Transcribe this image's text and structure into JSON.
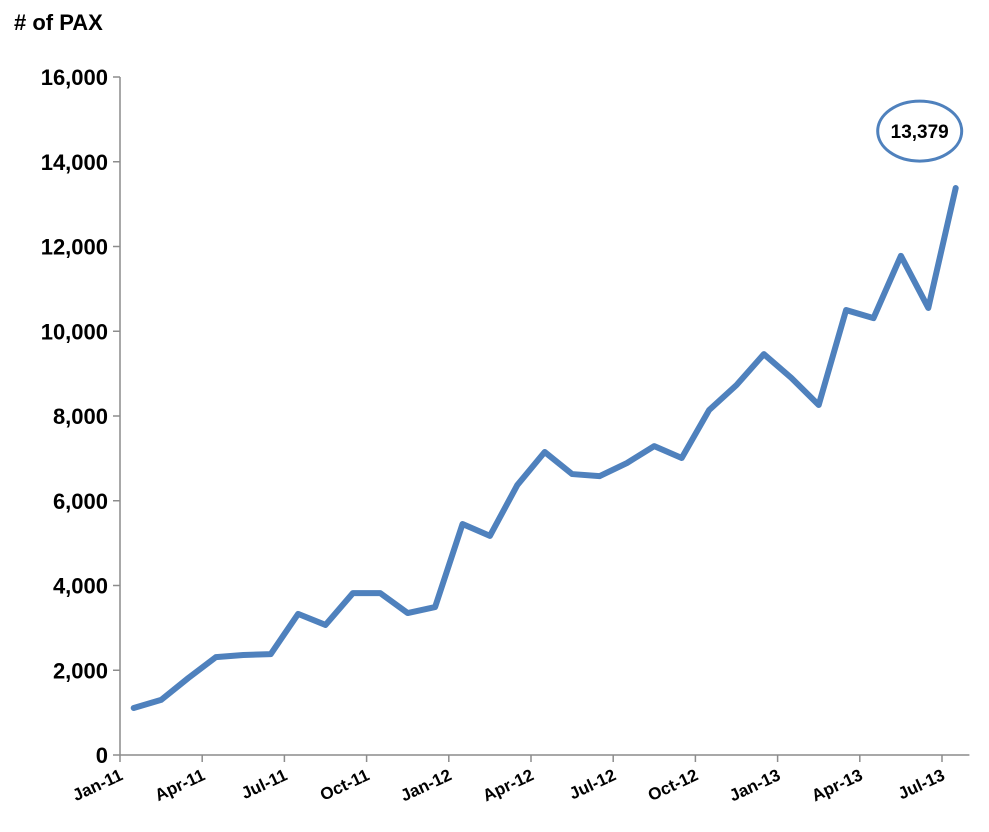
{
  "chart_data": {
    "type": "line",
    "ylabel": "# of PAX",
    "categories": [
      "Jan-11",
      null,
      null,
      "Apr-11",
      null,
      null,
      "Jul-11",
      null,
      null,
      "Oct-11",
      null,
      null,
      "Jan-12",
      null,
      null,
      "Apr-12",
      null,
      null,
      "Jul-12",
      null,
      null,
      "Oct-12",
      null,
      null,
      "Jan-13",
      null,
      null,
      "Apr-13",
      null,
      null,
      "Jul-13"
    ],
    "series": [
      {
        "name": "PAX",
        "color": "#4f81bd",
        "values": [
          1110,
          1300,
          1820,
          2310,
          2360,
          2380,
          3330,
          3070,
          3820,
          3820,
          3350,
          3490,
          5450,
          5170,
          6370,
          7150,
          6630,
          6580,
          6890,
          7290,
          7010,
          8140,
          8730,
          9460,
          8900,
          8260,
          10500,
          10310,
          11780,
          10550,
          13379
        ],
        "value_labels": [
          null,
          null,
          null,
          null,
          null,
          null,
          null,
          null,
          null,
          null,
          null,
          null,
          null,
          null,
          null,
          null,
          null,
          null,
          null,
          null,
          null,
          null,
          null,
          null,
          null,
          null,
          null,
          null,
          null,
          null,
          "13,379"
        ]
      }
    ],
    "ylim": [
      0,
      16000
    ],
    "yticks": [
      0,
      {
        "value": 2000,
        "label": "2,000"
      },
      {
        "value": 4000,
        "label": "4,000"
      },
      {
        "value": 6000,
        "label": "6,000"
      },
      {
        "value": 8000,
        "label": "8,000"
      },
      {
        "value": 10000,
        "label": "10,000"
      },
      {
        "value": 12000,
        "label": "12,000"
      },
      {
        "value": 14000,
        "label": "14,000"
      },
      {
        "value": 16000,
        "label": "16,000"
      }
    ]
  }
}
